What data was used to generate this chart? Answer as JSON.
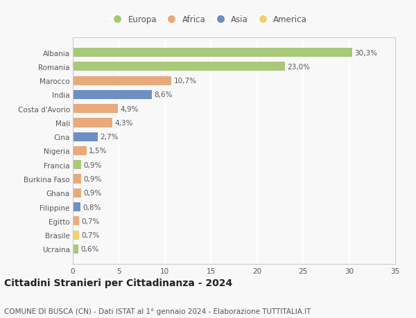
{
  "categories": [
    "Albania",
    "Romania",
    "Marocco",
    "India",
    "Costa d'Avorio",
    "Mali",
    "Cina",
    "Nigeria",
    "Francia",
    "Burkina Faso",
    "Ghana",
    "Filippine",
    "Egitto",
    "Brasile",
    "Ucraina"
  ],
  "values": [
    30.3,
    23.0,
    10.7,
    8.6,
    4.9,
    4.3,
    2.7,
    1.5,
    0.9,
    0.9,
    0.9,
    0.8,
    0.7,
    0.7,
    0.6
  ],
  "labels": [
    "30,3%",
    "23,0%",
    "10,7%",
    "8,6%",
    "4,9%",
    "4,3%",
    "2,7%",
    "1,5%",
    "0,9%",
    "0,9%",
    "0,9%",
    "0,8%",
    "0,7%",
    "0,7%",
    "0,6%"
  ],
  "continents": [
    "Europa",
    "Europa",
    "Africa",
    "Asia",
    "Africa",
    "Africa",
    "Asia",
    "Africa",
    "Europa",
    "Africa",
    "Africa",
    "Asia",
    "Africa",
    "America",
    "Europa"
  ],
  "continent_colors": {
    "Europa": "#a8c87a",
    "Africa": "#e8aa7a",
    "Asia": "#6e8fc4",
    "America": "#f0d070"
  },
  "legend_order": [
    "Europa",
    "Africa",
    "Asia",
    "America"
  ],
  "title": "Cittadini Stranieri per Cittadinanza - 2024",
  "subtitle": "COMUNE DI BUSCA (CN) - Dati ISTAT al 1° gennaio 2024 - Elaborazione TUTTITALIA.IT",
  "xlim": [
    0,
    35
  ],
  "xticks": [
    0,
    5,
    10,
    15,
    20,
    25,
    30,
    35
  ],
  "background_color": "#f8f8f8",
  "grid_color": "#ffffff",
  "bar_height": 0.65,
  "title_fontsize": 10,
  "subtitle_fontsize": 7.5,
  "tick_fontsize": 7.5,
  "label_fontsize": 7.5,
  "legend_fontsize": 8.5
}
